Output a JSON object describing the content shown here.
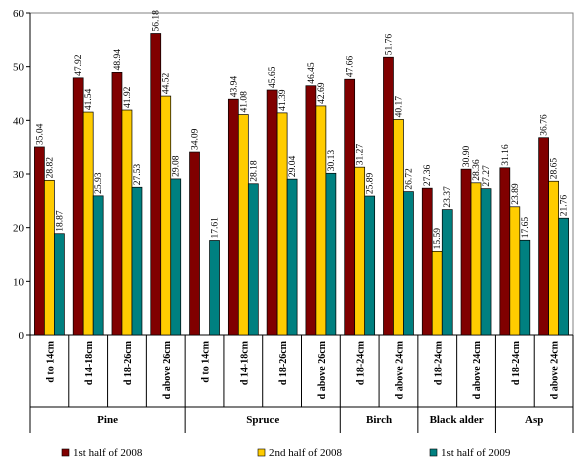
{
  "chart_data": {
    "type": "bar",
    "title": "",
    "xlabel": "",
    "ylabel": "",
    "ylim": [
      0,
      60
    ],
    "yticks": [
      0,
      10,
      20,
      30,
      40,
      50,
      60
    ],
    "grid": false,
    "legend_position": "bottom",
    "categories": [
      "d to 14cm",
      "d 14-18cm",
      "d 18-26cm",
      "d above 26cm",
      "d to 14cm",
      "d 14-18cm",
      "d 18-26cm",
      "d above 26cm",
      "d 18-24cm",
      "d above 24cm",
      "d 18-24cm",
      "d above 24cm",
      "d 18-24cm",
      "d above 24cm"
    ],
    "groups": [
      {
        "label": "Pine",
        "count": 4
      },
      {
        "label": "Spruce",
        "count": 4
      },
      {
        "label": "Birch",
        "count": 2
      },
      {
        "label": "Black alder",
        "count": 2
      },
      {
        "label": "Asp",
        "count": 2
      }
    ],
    "series": [
      {
        "name": "1st half of 2008",
        "color": "#800000",
        "values": [
          35.04,
          47.92,
          48.94,
          56.18,
          34.09,
          43.94,
          45.65,
          46.45,
          47.66,
          51.76,
          27.36,
          30.9,
          31.16,
          36.76
        ],
        "labels": [
          "35.04",
          "47.92",
          "48.94",
          "56.18",
          "34.09",
          "43.94",
          "45.65",
          "46.45",
          "47.66",
          "51.76",
          "27.36",
          "30.90",
          "31.16",
          "36.76"
        ]
      },
      {
        "name": "2nd half of 2008",
        "color": "#FFCC00",
        "values": [
          28.82,
          41.54,
          41.92,
          44.52,
          null,
          41.08,
          41.39,
          42.69,
          31.27,
          40.17,
          15.59,
          28.36,
          23.89,
          28.65
        ],
        "labels": [
          "28.82",
          "41.54",
          "41.92",
          "44.52",
          "",
          "41.08",
          "41.39",
          "42.69",
          "31.27",
          "40.17",
          "15.59",
          "28.36",
          "23.89",
          "28.65"
        ]
      },
      {
        "name": "1st half of 2009",
        "color": "#008080",
        "values": [
          18.87,
          25.93,
          27.53,
          29.08,
          17.61,
          28.18,
          29.04,
          30.13,
          25.89,
          26.72,
          23.37,
          27.27,
          17.65,
          21.76
        ],
        "labels": [
          "18.87",
          "25.93",
          "27.53",
          "29.08",
          "17.61",
          "28.18",
          "29.04",
          "30.13",
          "25.89",
          "26.72",
          "23.37",
          "27.27",
          "17.65",
          "21.76"
        ]
      }
    ]
  }
}
